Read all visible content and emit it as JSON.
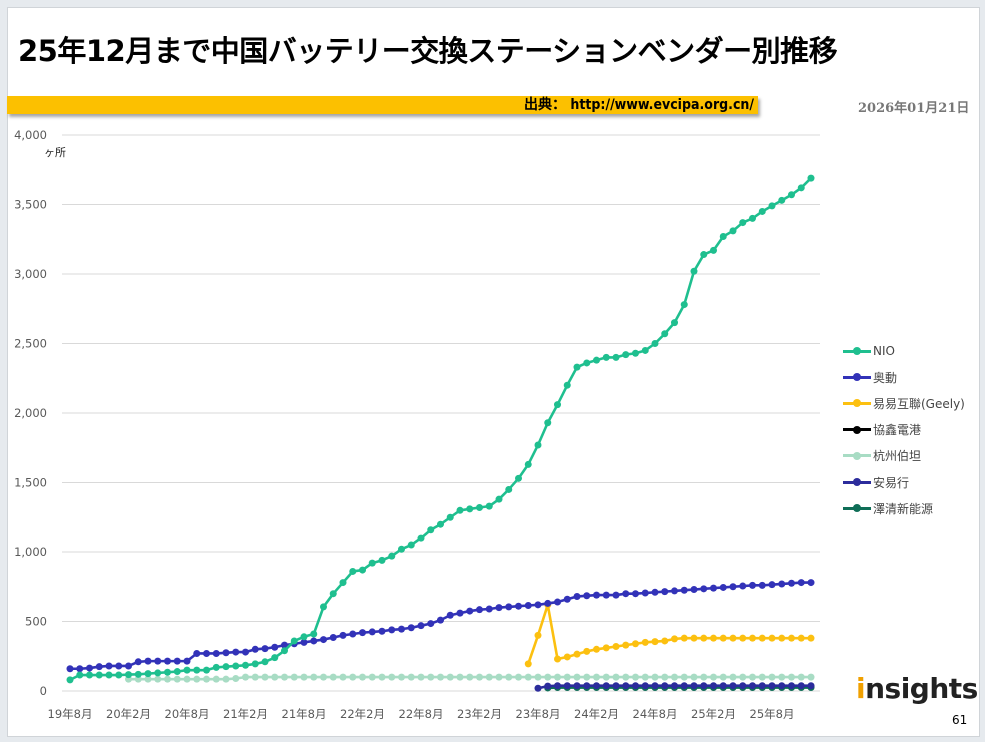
{
  "title": "25年12月まで中国バッテリー交換ステーションベンダー別推移",
  "source": "出典： http://www.evcipa.org.cn/",
  "date": "2026年01月21日",
  "logo": "insights",
  "page_number": "61",
  "colors": {
    "accent_bar": "#fcc000"
  },
  "chart_data": {
    "type": "line",
    "title": "",
    "ylabel": "ヶ所",
    "ylim": [
      0,
      4000
    ],
    "yticks": [
      "0",
      "500",
      "1,000",
      "1,500",
      "2,000",
      "2,500",
      "3,000",
      "3,500",
      "4,000"
    ],
    "ytick_values": [
      0,
      500,
      1000,
      1500,
      2000,
      2500,
      3000,
      3500,
      4000
    ],
    "x_start": "2019-08",
    "x_end": "2025-12",
    "xticks": [
      "19年8月",
      "20年2月",
      "20年8月",
      "21年2月",
      "21年8月",
      "22年2月",
      "22年8月",
      "23年2月",
      "23年8月",
      "24年2月",
      "24年8月",
      "25年2月",
      "25年8月"
    ],
    "grid": true,
    "legend_position": "right",
    "series": [
      {
        "name": "NIO",
        "color": "#1fbf8f",
        "values": [
          80,
          115,
          115,
          115,
          115,
          115,
          118,
          120,
          125,
          130,
          135,
          140,
          150,
          150,
          150,
          170,
          175,
          180,
          185,
          195,
          210,
          240,
          290,
          360,
          390,
          410,
          605,
          700,
          780,
          860,
          870,
          920,
          940,
          970,
          1020,
          1050,
          1100,
          1160,
          1200,
          1250,
          1300,
          1310,
          1320,
          1330,
          1380,
          1450,
          1530,
          1630,
          1770,
          1930,
          2060,
          2200,
          2330,
          2360,
          2380,
          2400,
          2400,
          2420,
          2430,
          2450,
          2500,
          2570,
          2650,
          2780,
          3020,
          3140,
          3170,
          3270,
          3310,
          3370,
          3400,
          3450,
          3490,
          3530,
          3570,
          3620,
          3690
        ]
      },
      {
        "name": "奥動",
        "color": "#3232b8",
        "values": [
          160,
          160,
          165,
          175,
          180,
          180,
          180,
          210,
          215,
          215,
          215,
          215,
          215,
          270,
          270,
          270,
          275,
          280,
          280,
          300,
          305,
          315,
          330,
          340,
          350,
          360,
          370,
          385,
          400,
          410,
          420,
          425,
          430,
          440,
          445,
          455,
          470,
          485,
          510,
          545,
          560,
          575,
          585,
          590,
          600,
          605,
          610,
          615,
          620,
          630,
          640,
          660,
          680,
          685,
          690,
          690,
          690,
          700,
          700,
          705,
          710,
          715,
          720,
          725,
          730,
          735,
          740,
          745,
          750,
          755,
          760,
          760,
          765,
          770,
          775,
          780,
          780
        ]
      },
      {
        "name": "易易互聯(Geely)",
        "color": "#fcc010",
        "values": [
          null,
          null,
          null,
          null,
          null,
          null,
          null,
          null,
          null,
          null,
          null,
          null,
          null,
          null,
          null,
          null,
          null,
          null,
          null,
          null,
          null,
          null,
          null,
          null,
          null,
          null,
          null,
          null,
          null,
          null,
          null,
          null,
          null,
          null,
          null,
          null,
          null,
          null,
          null,
          null,
          null,
          null,
          null,
          null,
          null,
          null,
          null,
          195,
          400,
          620,
          230,
          245,
          265,
          285,
          300,
          310,
          320,
          330,
          340,
          350,
          355,
          360,
          375,
          380,
          380,
          380,
          380,
          380,
          380,
          380,
          380,
          380,
          380,
          380,
          380,
          380,
          380
        ]
      },
      {
        "name": "協鑫電港",
        "color": "#000000",
        "values": [
          null,
          null,
          null,
          null,
          null,
          null,
          null,
          null,
          null,
          null,
          null,
          null,
          null,
          null,
          null,
          null,
          null,
          null,
          null,
          null,
          null,
          null,
          null,
          null,
          null,
          null,
          null,
          null,
          null,
          null,
          null,
          null,
          null,
          null,
          null,
          null,
          null,
          null,
          null,
          null,
          null,
          null,
          null,
          null,
          null,
          null,
          null,
          null,
          null,
          30,
          30,
          30,
          30,
          30,
          30,
          30,
          30,
          30,
          30,
          30,
          30,
          30,
          30,
          30,
          30,
          30,
          30,
          30,
          30,
          30,
          30,
          30,
          30,
          30,
          30,
          30,
          30
        ]
      },
      {
        "name": "杭州伯坦",
        "color": "#a8dcc4",
        "values": [
          null,
          null,
          null,
          null,
          null,
          null,
          85,
          85,
          85,
          85,
          85,
          85,
          85,
          85,
          85,
          85,
          85,
          90,
          100,
          100,
          100,
          100,
          100,
          100,
          100,
          100,
          100,
          100,
          100,
          100,
          100,
          100,
          100,
          100,
          100,
          100,
          100,
          100,
          100,
          100,
          100,
          100,
          100,
          100,
          100,
          100,
          100,
          100,
          100,
          100,
          100,
          100,
          100,
          100,
          100,
          100,
          100,
          100,
          100,
          100,
          100,
          100,
          100,
          100,
          100,
          100,
          100,
          100,
          100,
          100,
          100,
          100,
          100,
          100,
          100,
          100,
          100
        ]
      },
      {
        "name": "安易行",
        "color": "#2c2c9c",
        "values": [
          null,
          null,
          null,
          null,
          null,
          null,
          null,
          null,
          null,
          null,
          null,
          null,
          null,
          null,
          null,
          null,
          null,
          null,
          null,
          null,
          null,
          null,
          null,
          null,
          null,
          null,
          null,
          null,
          null,
          null,
          null,
          null,
          null,
          null,
          null,
          null,
          null,
          null,
          null,
          null,
          null,
          null,
          null,
          null,
          null,
          null,
          null,
          null,
          20,
          35,
          38,
          38,
          38,
          38,
          38,
          38,
          38,
          38,
          38,
          38,
          38,
          38,
          38,
          38,
          38,
          38,
          38,
          38,
          38,
          38,
          38,
          38,
          38,
          38,
          38,
          38,
          38
        ]
      },
      {
        "name": "澤清新能源",
        "color": "#0f6e57",
        "values": [
          null,
          null,
          null,
          null,
          null,
          null,
          null,
          null,
          null,
          null,
          null,
          null,
          null,
          null,
          null,
          null,
          null,
          null,
          null,
          null,
          null,
          null,
          null,
          null,
          null,
          null,
          null,
          null,
          null,
          null,
          null,
          null,
          null,
          null,
          null,
          null,
          null,
          null,
          null,
          null,
          null,
          null,
          null,
          null,
          null,
          null,
          null,
          null,
          null,
          22,
          25,
          25,
          25,
          25,
          25,
          25,
          25,
          25,
          25,
          25,
          25,
          25,
          25,
          25,
          25,
          25,
          25,
          25,
          25,
          25,
          25,
          25,
          25,
          25,
          25,
          25,
          25
        ]
      }
    ]
  }
}
